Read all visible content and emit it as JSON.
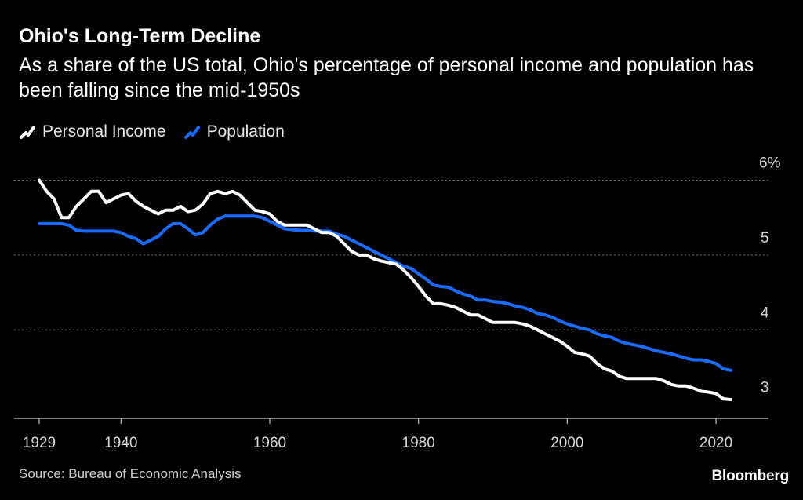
{
  "chart_data": {
    "type": "line",
    "title": "Ohio's Long-Term Decline",
    "subtitle": "As a share of the US total, Ohio's percentage of personal income and population has been falling since the mid-1950s",
    "xlabel": "",
    "ylabel": "",
    "xlim": [
      1929,
      2022
    ],
    "ylim": [
      2.85,
      6.1
    ],
    "x_ticks": [
      1929,
      1940,
      1960,
      1980,
      2000,
      2020
    ],
    "x_tick_labels": [
      "1929",
      "1940",
      "1960",
      "1980",
      "2000",
      "2020"
    ],
    "y_ticks": [
      3,
      4,
      5,
      6
    ],
    "y_tick_labels": [
      "3",
      "4",
      "5",
      "6%"
    ],
    "grid": "horizontal-dotted",
    "legend_position": "top-left",
    "series": [
      {
        "name": "Personal Income",
        "color": "#ffffff",
        "points": [
          [
            1929,
            6.0
          ],
          [
            1930,
            5.85
          ],
          [
            1931,
            5.75
          ],
          [
            1932,
            5.5
          ],
          [
            1933,
            5.5
          ],
          [
            1934,
            5.65
          ],
          [
            1935,
            5.75
          ],
          [
            1936,
            5.85
          ],
          [
            1937,
            5.85
          ],
          [
            1938,
            5.7
          ],
          [
            1939,
            5.75
          ],
          [
            1940,
            5.8
          ],
          [
            1941,
            5.82
          ],
          [
            1942,
            5.72
          ],
          [
            1943,
            5.65
          ],
          [
            1944,
            5.6
          ],
          [
            1945,
            5.55
          ],
          [
            1946,
            5.6
          ],
          [
            1947,
            5.6
          ],
          [
            1948,
            5.65
          ],
          [
            1949,
            5.58
          ],
          [
            1950,
            5.6
          ],
          [
            1951,
            5.68
          ],
          [
            1952,
            5.82
          ],
          [
            1953,
            5.85
          ],
          [
            1954,
            5.82
          ],
          [
            1955,
            5.85
          ],
          [
            1956,
            5.8
          ],
          [
            1957,
            5.7
          ],
          [
            1958,
            5.6
          ],
          [
            1959,
            5.58
          ],
          [
            1960,
            5.55
          ],
          [
            1961,
            5.45
          ],
          [
            1962,
            5.4
          ],
          [
            1963,
            5.4
          ],
          [
            1964,
            5.4
          ],
          [
            1965,
            5.4
          ],
          [
            1966,
            5.35
          ],
          [
            1967,
            5.3
          ],
          [
            1968,
            5.3
          ],
          [
            1969,
            5.25
          ],
          [
            1970,
            5.15
          ],
          [
            1971,
            5.05
          ],
          [
            1972,
            5.0
          ],
          [
            1973,
            5.0
          ],
          [
            1974,
            4.95
          ],
          [
            1975,
            4.92
          ],
          [
            1976,
            4.9
          ],
          [
            1977,
            4.88
          ],
          [
            1978,
            4.8
          ],
          [
            1979,
            4.7
          ],
          [
            1980,
            4.58
          ],
          [
            1981,
            4.45
          ],
          [
            1982,
            4.35
          ],
          [
            1983,
            4.35
          ],
          [
            1984,
            4.33
          ],
          [
            1985,
            4.3
          ],
          [
            1986,
            4.25
          ],
          [
            1987,
            4.2
          ],
          [
            1988,
            4.2
          ],
          [
            1989,
            4.15
          ],
          [
            1990,
            4.1
          ],
          [
            1991,
            4.1
          ],
          [
            1992,
            4.1
          ],
          [
            1993,
            4.1
          ],
          [
            1994,
            4.08
          ],
          [
            1995,
            4.05
          ],
          [
            1996,
            4.0
          ],
          [
            1997,
            3.95
          ],
          [
            1998,
            3.9
          ],
          [
            1999,
            3.85
          ],
          [
            2000,
            3.78
          ],
          [
            2001,
            3.7
          ],
          [
            2002,
            3.68
          ],
          [
            2003,
            3.65
          ],
          [
            2004,
            3.55
          ],
          [
            2005,
            3.48
          ],
          [
            2006,
            3.45
          ],
          [
            2007,
            3.38
          ],
          [
            2008,
            3.35
          ],
          [
            2009,
            3.35
          ],
          [
            2010,
            3.35
          ],
          [
            2011,
            3.35
          ],
          [
            2012,
            3.35
          ],
          [
            2013,
            3.32
          ],
          [
            2014,
            3.27
          ],
          [
            2015,
            3.25
          ],
          [
            2016,
            3.25
          ],
          [
            2017,
            3.22
          ],
          [
            2018,
            3.18
          ],
          [
            2019,
            3.17
          ],
          [
            2020,
            3.15
          ],
          [
            2021,
            3.08
          ],
          [
            2022,
            3.07
          ]
        ]
      },
      {
        "name": "Population",
        "color": "#1a6bff",
        "points": [
          [
            1929,
            5.42
          ],
          [
            1930,
            5.42
          ],
          [
            1931,
            5.42
          ],
          [
            1932,
            5.42
          ],
          [
            1933,
            5.4
          ],
          [
            1934,
            5.33
          ],
          [
            1935,
            5.32
          ],
          [
            1936,
            5.32
          ],
          [
            1937,
            5.32
          ],
          [
            1938,
            5.32
          ],
          [
            1939,
            5.32
          ],
          [
            1940,
            5.3
          ],
          [
            1941,
            5.25
          ],
          [
            1942,
            5.22
          ],
          [
            1943,
            5.15
          ],
          [
            1944,
            5.2
          ],
          [
            1945,
            5.25
          ],
          [
            1946,
            5.35
          ],
          [
            1947,
            5.42
          ],
          [
            1948,
            5.42
          ],
          [
            1949,
            5.35
          ],
          [
            1950,
            5.27
          ],
          [
            1951,
            5.3
          ],
          [
            1952,
            5.4
          ],
          [
            1953,
            5.48
          ],
          [
            1954,
            5.52
          ],
          [
            1955,
            5.52
          ],
          [
            1956,
            5.52
          ],
          [
            1957,
            5.52
          ],
          [
            1958,
            5.52
          ],
          [
            1959,
            5.5
          ],
          [
            1960,
            5.45
          ],
          [
            1961,
            5.4
          ],
          [
            1962,
            5.35
          ],
          [
            1963,
            5.34
          ],
          [
            1964,
            5.33
          ],
          [
            1965,
            5.33
          ],
          [
            1966,
            5.32
          ],
          [
            1967,
            5.32
          ],
          [
            1968,
            5.32
          ],
          [
            1969,
            5.28
          ],
          [
            1970,
            5.25
          ],
          [
            1971,
            5.2
          ],
          [
            1972,
            5.15
          ],
          [
            1973,
            5.1
          ],
          [
            1974,
            5.05
          ],
          [
            1975,
            5.0
          ],
          [
            1976,
            4.95
          ],
          [
            1977,
            4.9
          ],
          [
            1978,
            4.85
          ],
          [
            1979,
            4.82
          ],
          [
            1980,
            4.75
          ],
          [
            1981,
            4.68
          ],
          [
            1982,
            4.6
          ],
          [
            1983,
            4.58
          ],
          [
            1984,
            4.57
          ],
          [
            1985,
            4.52
          ],
          [
            1986,
            4.48
          ],
          [
            1987,
            4.45
          ],
          [
            1988,
            4.4
          ],
          [
            1989,
            4.4
          ],
          [
            1990,
            4.38
          ],
          [
            1991,
            4.37
          ],
          [
            1992,
            4.35
          ],
          [
            1993,
            4.32
          ],
          [
            1994,
            4.3
          ],
          [
            1995,
            4.27
          ],
          [
            1996,
            4.22
          ],
          [
            1997,
            4.2
          ],
          [
            1998,
            4.17
          ],
          [
            1999,
            4.12
          ],
          [
            2000,
            4.08
          ],
          [
            2001,
            4.05
          ],
          [
            2002,
            4.02
          ],
          [
            2003,
            4.0
          ],
          [
            2004,
            3.95
          ],
          [
            2005,
            3.92
          ],
          [
            2006,
            3.9
          ],
          [
            2007,
            3.85
          ],
          [
            2008,
            3.82
          ],
          [
            2009,
            3.8
          ],
          [
            2010,
            3.78
          ],
          [
            2011,
            3.75
          ],
          [
            2012,
            3.72
          ],
          [
            2013,
            3.7
          ],
          [
            2014,
            3.68
          ],
          [
            2015,
            3.65
          ],
          [
            2016,
            3.62
          ],
          [
            2017,
            3.6
          ],
          [
            2018,
            3.6
          ],
          [
            2019,
            3.58
          ],
          [
            2020,
            3.55
          ],
          [
            2021,
            3.48
          ],
          [
            2022,
            3.46
          ]
        ]
      }
    ]
  },
  "source": "Source: Bureau of Economic Analysis",
  "brand": "Bloomberg",
  "colors": {
    "background": "#000000",
    "income": "#ffffff",
    "population": "#1a6bff",
    "grid": "#6e6e6e",
    "axis": "#bdbdbd",
    "tick_text": "#d9d9d9"
  }
}
